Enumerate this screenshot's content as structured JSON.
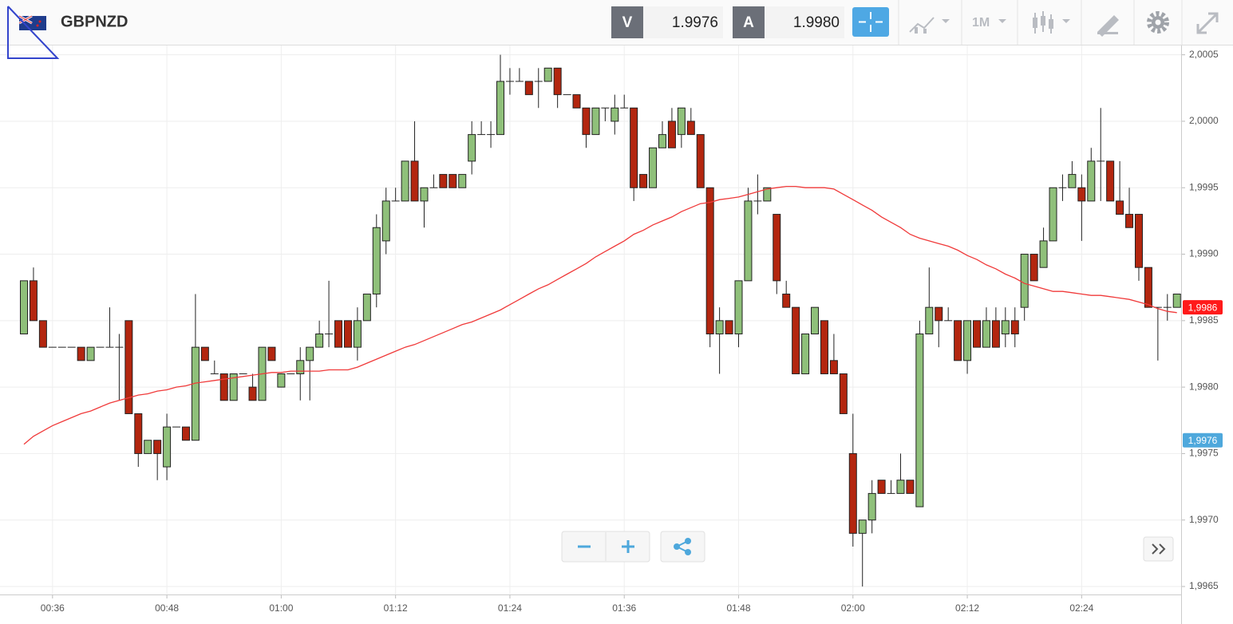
{
  "header": {
    "symbol": "GBPNZD",
    "bid_label": "V",
    "bid": "1.9976",
    "ask_label": "A",
    "ask": "1.9980",
    "timeframe": "1M"
  },
  "chart_data": {
    "type": "candlestick",
    "x": [
      "00:33",
      "00:34",
      "00:35",
      "00:36",
      "00:37",
      "00:38",
      "00:39",
      "00:40",
      "00:41",
      "00:42",
      "00:43",
      "00:44",
      "00:45",
      "00:46",
      "00:47",
      "00:48",
      "00:49",
      "00:50",
      "00:51",
      "00:52",
      "00:53",
      "00:54",
      "00:55",
      "00:56",
      "00:57",
      "00:58",
      "00:59",
      "01:00",
      "01:01",
      "01:02",
      "01:03",
      "01:04",
      "01:05",
      "01:06",
      "01:07",
      "01:08",
      "01:09",
      "01:10",
      "01:11",
      "01:12",
      "01:13",
      "01:14",
      "01:15",
      "01:16",
      "01:17",
      "01:18",
      "01:19",
      "01:20",
      "01:21",
      "01:22",
      "01:23",
      "01:24",
      "01:25",
      "01:26",
      "01:27",
      "01:28",
      "01:29",
      "01:30",
      "01:31",
      "01:32",
      "01:33",
      "01:34",
      "01:35",
      "01:36",
      "01:37",
      "01:38",
      "01:39",
      "01:40",
      "01:41",
      "01:42",
      "01:43",
      "01:44",
      "01:45",
      "01:46",
      "01:47",
      "01:48",
      "01:49",
      "01:50",
      "01:51",
      "01:52",
      "01:53",
      "01:54",
      "01:55",
      "01:56",
      "01:57",
      "01:58",
      "01:59",
      "02:00",
      "02:01",
      "02:02",
      "02:03",
      "02:04",
      "02:05",
      "02:06",
      "02:07",
      "02:08",
      "02:09",
      "02:10",
      "02:11",
      "02:12",
      "02:13",
      "02:14",
      "02:15",
      "02:16",
      "02:17",
      "02:18",
      "02:19",
      "02:20",
      "02:21",
      "02:22",
      "02:23",
      "02:24",
      "02:25",
      "02:26",
      "02:27",
      "02:28",
      "02:29",
      "02:30",
      "02:31",
      "02:32",
      "02:33",
      "02:34"
    ],
    "open": [
      1.9984,
      1.9988,
      1.9985,
      1.9983,
      1.9983,
      1.9983,
      1.9983,
      1.9982,
      1.9983,
      1.9983,
      1.9983,
      1.9985,
      1.9978,
      1.9975,
      1.9976,
      1.9974,
      1.9977,
      1.9977,
      1.9976,
      1.9983,
      1.9981,
      1.9981,
      1.9979,
      1.9981,
      1.998,
      1.9979,
      1.9983,
      1.998,
      1.9981,
      1.9981,
      1.9982,
      1.9983,
      1.9984,
      1.9985,
      1.9985,
      1.9983,
      1.9985,
      1.9987,
      1.9991,
      1.9994,
      1.9994,
      1.9997,
      1.9994,
      1.9995,
      1.9996,
      1.9996,
      1.9995,
      1.9997,
      1.9999,
      1.9999,
      1.9999,
      2.0003,
      2.0003,
      2.0003,
      2.0003,
      2.0003,
      2.0004,
      2.0002,
      2.0002,
      2.0001,
      1.9999,
      2.0001,
      2.0,
      2.0001,
      2.0001,
      1.9996,
      1.9995,
      1.9998,
      2.0,
      1.9999,
      2.0,
      1.9999,
      1.9995,
      1.9984,
      1.9985,
      1.9984,
      1.9988,
      1.9994,
      1.9994,
      1.9993,
      1.9987,
      1.9986,
      1.9981,
      1.9984,
      1.9985,
      1.9982,
      1.9981,
      1.9975,
      1.9969,
      1.997,
      1.9973,
      1.9972,
      1.9972,
      1.9973,
      1.9971,
      1.9984,
      1.9986,
      1.9985,
      1.9985,
      1.9982,
      1.9985,
      1.9983,
      1.9985,
      1.9984,
      1.9985,
      1.9986,
      1.999,
      1.9989,
      1.9991,
      1.9995,
      1.9995,
      1.9995,
      1.9994,
      1.9997,
      1.9997,
      1.9994,
      1.9993,
      1.9993,
      1.9989,
      1.9986,
      1.9986,
      1.9986
    ],
    "high": [
      1.9988,
      1.9989,
      1.9985,
      1.9983,
      1.9983,
      1.9983,
      1.9983,
      1.9983,
      1.9983,
      1.9986,
      1.9984,
      1.9985,
      1.9978,
      1.9976,
      1.9976,
      1.9978,
      1.9977,
      1.9977,
      1.9987,
      1.9983,
      1.9982,
      1.9981,
      1.9981,
      1.9981,
      1.9981,
      1.9983,
      1.9983,
      1.9981,
      1.9981,
      1.9983,
      1.9983,
      1.9985,
      1.9988,
      1.9985,
      1.9985,
      1.9986,
      1.9987,
      1.9993,
      1.9995,
      1.9995,
      1.9997,
      2.0,
      1.9995,
      1.9996,
      1.9996,
      1.9996,
      1.9996,
      2.0,
      2.0,
      2.0,
      2.0005,
      2.0004,
      2.0004,
      2.0003,
      2.0004,
      2.0004,
      2.0004,
      2.0002,
      2.0002,
      2.0001,
      2.0001,
      2.0001,
      2.0002,
      2.0002,
      2.0001,
      1.9996,
      1.9998,
      2.0,
      2.0001,
      2.0001,
      2.0001,
      1.9999,
      1.9995,
      1.9986,
      1.9985,
      1.9988,
      1.9995,
      1.9996,
      1.9995,
      1.9993,
      1.9988,
      1.9986,
      1.9984,
      1.9986,
      1.9985,
      1.9984,
      1.9981,
      1.9978,
      1.997,
      1.9973,
      1.9973,
      1.9973,
      1.9975,
      1.9973,
      1.9985,
      1.9989,
      1.9986,
      1.9986,
      1.9985,
      1.9985,
      1.9985,
      1.9986,
      1.9986,
      1.9986,
      1.9986,
      1.999,
      1.999,
      1.9992,
      1.9995,
      1.9996,
      1.9997,
      1.9996,
      1.9998,
      2.0001,
      1.9997,
      1.9997,
      1.9995,
      1.9993,
      1.9989,
      1.9986,
      1.9987,
      1.9987
    ],
    "low": [
      1.9984,
      1.9985,
      1.9983,
      1.9983,
      1.9983,
      1.9983,
      1.9982,
      1.9982,
      1.9983,
      1.9983,
      1.9979,
      1.9978,
      1.9974,
      1.9975,
      1.9973,
      1.9973,
      1.9977,
      1.9976,
      1.9976,
      1.9982,
      1.9981,
      1.9979,
      1.9979,
      1.9981,
      1.9979,
      1.9979,
      1.9982,
      1.998,
      1.9981,
      1.9979,
      1.9979,
      1.9983,
      1.9983,
      1.9983,
      1.9983,
      1.9982,
      1.9985,
      1.9986,
      1.999,
      1.9994,
      1.9994,
      1.9994,
      1.9992,
      1.9995,
      1.9995,
      1.9995,
      1.9995,
      1.9996,
      1.9999,
      1.9998,
      1.9999,
      2.0002,
      2.0003,
      2.0002,
      2.0001,
      2.0003,
      2.0001,
      2.0002,
      2.0001,
      1.9998,
      1.9999,
      2.0,
      1.9999,
      2.0001,
      1.9994,
      1.9995,
      1.9995,
      1.9998,
      1.9998,
      1.9998,
      1.9999,
      1.9995,
      1.9983,
      1.9981,
      1.9984,
      1.9983,
      1.9988,
      1.9993,
      1.9994,
      1.9987,
      1.9986,
      1.9981,
      1.9981,
      1.9984,
      1.9981,
      1.9981,
      1.9978,
      1.9968,
      1.9965,
      1.9969,
      1.9972,
      1.9972,
      1.9972,
      1.9972,
      1.9971,
      1.9984,
      1.9983,
      1.9985,
      1.9982,
      1.9981,
      1.9983,
      1.9983,
      1.9983,
      1.9983,
      1.9983,
      1.9985,
      1.9988,
      1.9989,
      1.9991,
      1.9994,
      1.9995,
      1.9991,
      1.9994,
      1.9994,
      1.9994,
      1.9993,
      1.9992,
      1.9988,
      1.9986,
      1.9982,
      1.9985,
      1.9986
    ],
    "close": [
      1.9988,
      1.9985,
      1.9983,
      1.9983,
      1.9983,
      1.9983,
      1.9982,
      1.9983,
      1.9983,
      1.9983,
      1.9983,
      1.9978,
      1.9975,
      1.9976,
      1.9975,
      1.9977,
      1.9977,
      1.9976,
      1.9983,
      1.9982,
      1.9981,
      1.9979,
      1.9981,
      1.9981,
      1.9979,
      1.9983,
      1.9982,
      1.9981,
      1.9981,
      1.9982,
      1.9983,
      1.9984,
      1.9984,
      1.9983,
      1.9983,
      1.9985,
      1.9987,
      1.9992,
      1.9994,
      1.9994,
      1.9997,
      1.9994,
      1.9995,
      1.9995,
      1.9995,
      1.9995,
      1.9996,
      1.9999,
      1.9999,
      1.9999,
      2.0003,
      2.0003,
      2.0003,
      2.0002,
      2.0003,
      2.0004,
      2.0002,
      2.0002,
      2.0001,
      1.9999,
      2.0001,
      2.0001,
      2.0001,
      2.0001,
      1.9995,
      1.9995,
      1.9998,
      1.9999,
      1.9998,
      2.0001,
      1.9999,
      1.9995,
      1.9984,
      1.9985,
      1.9984,
      1.9988,
      1.9994,
      1.9994,
      1.9995,
      1.9988,
      1.9986,
      1.9981,
      1.9984,
      1.9986,
      1.9981,
      1.9981,
      1.9978,
      1.9969,
      1.997,
      1.9972,
      1.9972,
      1.9972,
      1.9973,
      1.9972,
      1.9984,
      1.9986,
      1.9985,
      1.9985,
      1.9982,
      1.9985,
      1.9983,
      1.9985,
      1.9983,
      1.9985,
      1.9984,
      1.999,
      1.9988,
      1.9991,
      1.9995,
      1.9995,
      1.9996,
      1.9994,
      1.9997,
      1.9997,
      1.9994,
      1.9993,
      1.9992,
      1.9989,
      1.9986,
      1.9986,
      1.9986,
      1.9987
    ],
    "up_color": "#8fc07a",
    "down_color": "#b3260f",
    "ma": {
      "color": "#f03a3a",
      "values": [
        1.99757,
        1.99763,
        1.99767,
        1.99771,
        1.99774,
        1.99777,
        1.9978,
        1.99782,
        1.99785,
        1.99788,
        1.9979,
        1.99792,
        1.99794,
        1.99795,
        1.99797,
        1.99798,
        1.998,
        1.99801,
        1.99803,
        1.99804,
        1.99805,
        1.99806,
        1.99807,
        1.99808,
        1.99809,
        1.9981,
        1.99811,
        1.99811,
        1.99812,
        1.99812,
        1.99812,
        1.99812,
        1.99813,
        1.99813,
        1.99813,
        1.99815,
        1.99818,
        1.99821,
        1.99824,
        1.99827,
        1.9983,
        1.99832,
        1.99835,
        1.99838,
        1.99841,
        1.99844,
        1.99847,
        1.99849,
        1.99852,
        1.99855,
        1.99858,
        1.99862,
        1.99866,
        1.9987,
        1.99874,
        1.99877,
        1.99881,
        1.99885,
        1.99889,
        1.99893,
        1.99898,
        1.99902,
        1.99906,
        1.9991,
        1.99915,
        1.99918,
        1.99922,
        1.99925,
        1.99928,
        1.99932,
        1.99935,
        1.99938,
        1.99939,
        1.99941,
        1.99942,
        1.99943,
        1.99945,
        1.99947,
        1.99949,
        1.9995,
        1.99951,
        1.99951,
        1.9995,
        1.9995,
        1.9995,
        1.99949,
        1.99945,
        1.99941,
        1.99937,
        1.99933,
        1.99928,
        1.99924,
        1.9992,
        1.99915,
        1.99912,
        1.9991,
        1.99908,
        1.99906,
        1.99903,
        1.99899,
        1.99896,
        1.99892,
        1.99889,
        1.99885,
        1.99882,
        1.99878,
        1.99876,
        1.99874,
        1.99872,
        1.99872,
        1.99871,
        1.9987,
        1.99869,
        1.99869,
        1.99868,
        1.99867,
        1.99866,
        1.99864,
        1.99862,
        1.99859,
        1.99857,
        1.99856
      ]
    },
    "ylim": [
      1.99644,
      2.00057
    ],
    "yticks": [
      {
        "value": 2.0005,
        "label": "2,0005"
      },
      {
        "value": 2.0,
        "label": "2,0000"
      },
      {
        "value": 1.9995,
        "label": "1,9995"
      },
      {
        "value": 1.999,
        "label": "1,9990"
      },
      {
        "value": 1.9985,
        "label": "1,9985"
      },
      {
        "value": 1.998,
        "label": "1,9980"
      },
      {
        "value": 1.9975,
        "label": "1,9975"
      },
      {
        "value": 1.997,
        "label": "1,9970"
      },
      {
        "value": 1.9965,
        "label": "1,9965"
      }
    ],
    "xticks": [
      "00:36",
      "00:48",
      "01:00",
      "01:12",
      "01:24",
      "01:36",
      "01:48",
      "02:00",
      "02:12",
      "02:24"
    ],
    "grid": true,
    "price_labels": [
      {
        "value": 1.9986,
        "label": "1,9986",
        "color": "#ff1a1a"
      },
      {
        "value": 1.9976,
        "label": "1,9976",
        "color": "#4ea8dc"
      }
    ]
  }
}
